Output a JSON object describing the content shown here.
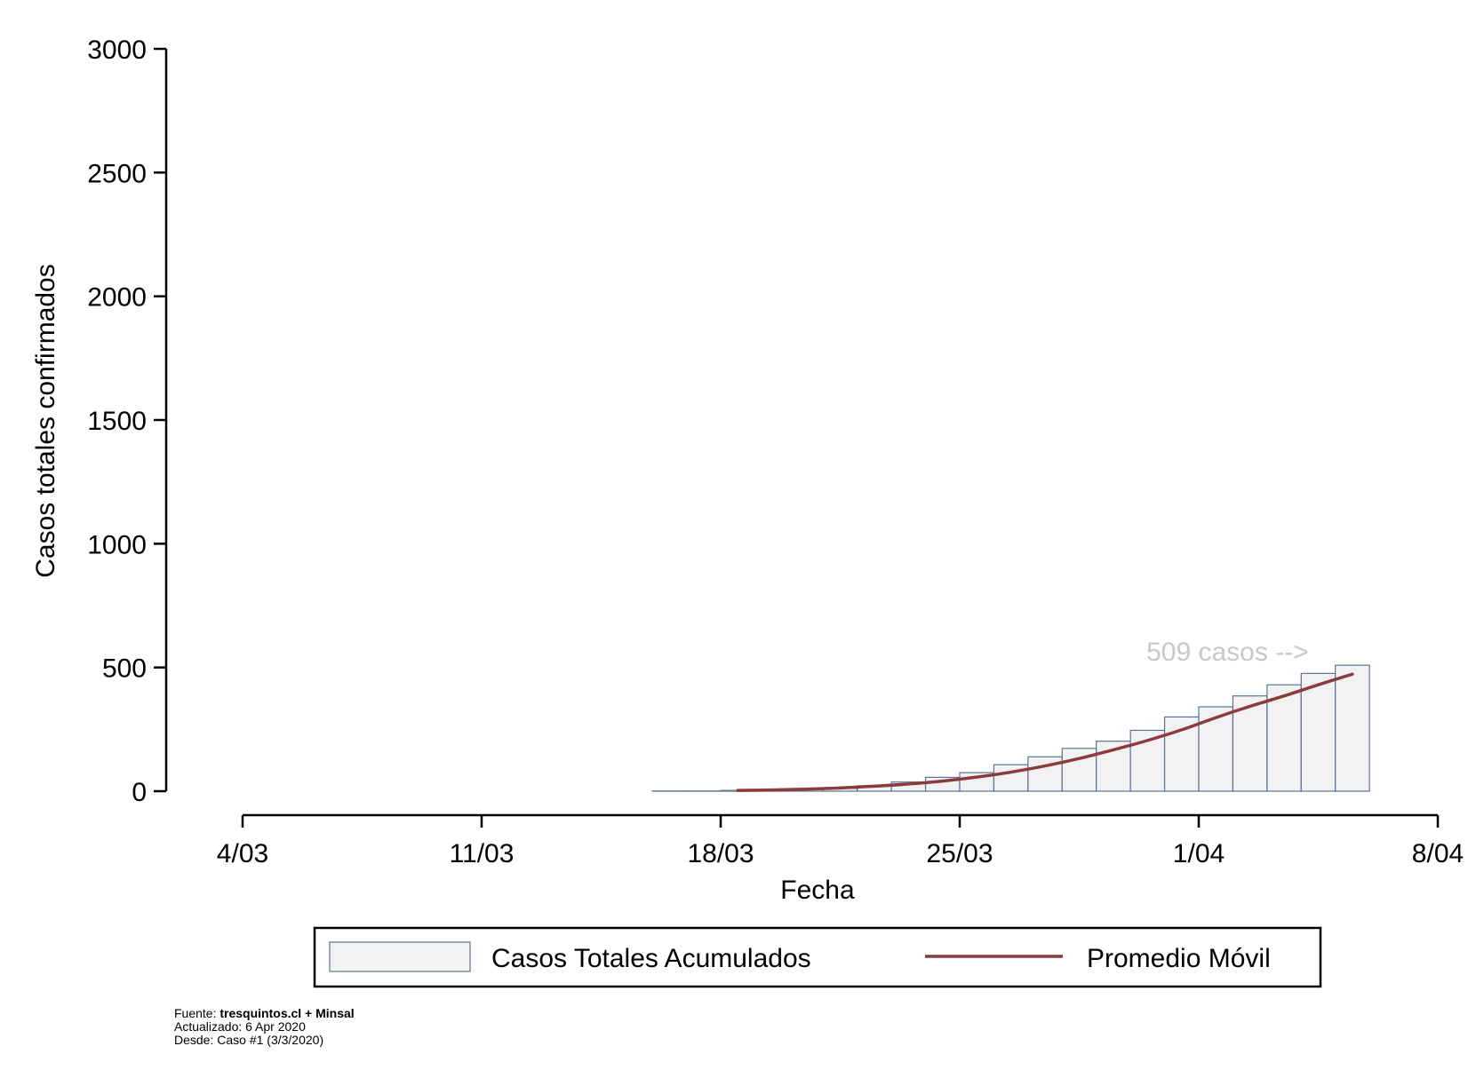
{
  "chart_data": {
    "type": "bar",
    "title": "",
    "ylabel": "Casos totales confirmados",
    "xlabel": "Fecha",
    "ylim": [
      0,
      3000
    ],
    "yticks": [
      0,
      500,
      1000,
      1500,
      2000,
      2500,
      3000
    ],
    "xlim_dates": [
      "2020-03-04",
      "2020-04-08"
    ],
    "xticks": [
      {
        "date": "2020-03-04",
        "label": "4/03"
      },
      {
        "date": "2020-03-11",
        "label": "11/03"
      },
      {
        "date": "2020-03-18",
        "label": "18/03"
      },
      {
        "date": "2020-03-25",
        "label": "25/03"
      },
      {
        "date": "2020-04-01",
        "label": "1/04"
      },
      {
        "date": "2020-04-08",
        "label": "8/04"
      }
    ],
    "grid": false,
    "legend_position": "bottom",
    "categories": [
      "2020-03-16",
      "2020-03-17",
      "2020-03-18",
      "2020-03-19",
      "2020-03-20",
      "2020-03-21",
      "2020-03-22",
      "2020-03-23",
      "2020-03-24",
      "2020-03-25",
      "2020-03-26",
      "2020-03-27",
      "2020-03-28",
      "2020-03-29",
      "2020-03-30",
      "2020-03-31",
      "2020-04-01",
      "2020-04-02",
      "2020-04-03",
      "2020-04-04",
      "2020-04-05"
    ],
    "series": [
      {
        "name": "Casos Totales Acumulados",
        "type": "bar",
        "color": "#f2f2f2",
        "edge_color": "#5c7391",
        "values": [
          1,
          1,
          3,
          4,
          8,
          11,
          22,
          37,
          56,
          75,
          107,
          139,
          173,
          202,
          246,
          300,
          341,
          385,
          430,
          476,
          509
        ]
      },
      {
        "name": "Promedio Móvil",
        "type": "line",
        "color": "#8b3a3e",
        "x": [
          "2020-03-18",
          "2020-03-19",
          "2020-03-20",
          "2020-03-21",
          "2020-03-22",
          "2020-03-23",
          "2020-03-24",
          "2020-03-25",
          "2020-03-26",
          "2020-03-27",
          "2020-03-28",
          "2020-03-29",
          "2020-03-30",
          "2020-03-31",
          "2020-04-01",
          "2020-04-02",
          "2020-04-03",
          "2020-04-04",
          "2020-04-05"
        ],
        "values": [
          3,
          5,
          8,
          13,
          20,
          29,
          41,
          57,
          77,
          102,
          132,
          167,
          205,
          248,
          297,
          343,
          385,
          430,
          473
        ]
      }
    ],
    "annotations": [
      {
        "text": "509 casos -->",
        "color": "#c8c8c8"
      }
    ]
  },
  "legend": {
    "items": [
      {
        "label": "Casos Totales Acumulados",
        "kind": "bar"
      },
      {
        "label": "Promedio Móvil",
        "kind": "line"
      }
    ]
  },
  "footnotes": {
    "source_prefix": "Fuente: ",
    "source_bold": "tresquintos.cl + Minsal",
    "updated": "Actualizado: 6 Apr 2020",
    "since": "Desde: Caso #1 (3/3/2020)"
  }
}
